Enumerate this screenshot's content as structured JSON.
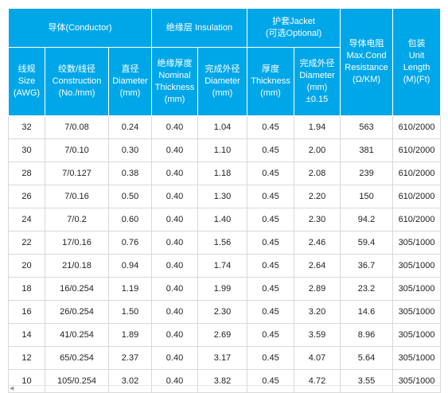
{
  "header": {
    "conductor_group": "导体(Conductor)",
    "insulation_group": "绝缘层 Insulation",
    "jacket_group_line1": "护套Jacket",
    "jacket_group_line2": "(可选Optional)",
    "resistance": [
      "导体电阻",
      "Max.Cond",
      "Resistance",
      "(Ω/KM)"
    ],
    "length": [
      "包装",
      "Unit",
      "Length",
      "(M)(Ft)"
    ],
    "size": [
      "线规",
      "Size",
      "(AWG)"
    ],
    "construction": [
      "绞数/线径",
      "Construction",
      "(No./mm)"
    ],
    "diameter": [
      "直径",
      "Diameter",
      "(mm)"
    ],
    "ins_thickness": [
      "绝缘厚度",
      "Nominal",
      "Thickness",
      "(mm)"
    ],
    "ins_od": [
      "完成外径",
      "Diameter",
      "(mm)"
    ],
    "jk_thickness": [
      "厚度",
      "Thickness",
      "(mm)"
    ],
    "jk_od": [
      "完成外径",
      "Diameter",
      "(mm)",
      "±0.15"
    ]
  },
  "rows": [
    [
      "32",
      "7/0.08",
      "0.24",
      "0.40",
      "1.04",
      "0.45",
      "1.94",
      "563",
      "610/2000"
    ],
    [
      "30",
      "7/0.10",
      "0.30",
      "0.40",
      "1.10",
      "0.45",
      "2.00",
      "381",
      "610/2000"
    ],
    [
      "28",
      "7/0.127",
      "0.38",
      "0.40",
      "1.18",
      "0.45",
      "2.08",
      "239",
      "610/2000"
    ],
    [
      "26",
      "7/0.16",
      "0.50",
      "0.40",
      "1.30",
      "0.45",
      "2.20",
      "150",
      "610/2000"
    ],
    [
      "24",
      "7/0.2",
      "0.60",
      "0.40",
      "1.40",
      "0.45",
      "2.30",
      "94.2",
      "610/2000"
    ],
    [
      "22",
      "17/0.16",
      "0.76",
      "0.40",
      "1.56",
      "0.45",
      "2.46",
      "59.4",
      "305/1000"
    ],
    [
      "20",
      "21/0.18",
      "0.94",
      "0.40",
      "1.74",
      "0.45",
      "2.64",
      "36.7",
      "305/1000"
    ],
    [
      "18",
      "16/0.254",
      "1.19",
      "0.40",
      "1.99",
      "0.45",
      "2.89",
      "23.2",
      "305/1000"
    ],
    [
      "16",
      "26/0.254",
      "1.50",
      "0.40",
      "2.30",
      "0.45",
      "3.20",
      "14.6",
      "305/1000"
    ],
    [
      "14",
      "41/0.254",
      "1.89",
      "0.40",
      "2.69",
      "0.45",
      "3.59",
      "8.96",
      "305/1000"
    ],
    [
      "12",
      "65/0.254",
      "2.37",
      "0.40",
      "3.17",
      "0.45",
      "4.07",
      "5.64",
      "305/1000"
    ],
    [
      "10",
      "105/0.254",
      "3.02",
      "0.40",
      "3.82",
      "0.45",
      "4.72",
      "3.55",
      "305/1000"
    ]
  ],
  "scrollbar": {
    "left_arrow": "◀"
  }
}
